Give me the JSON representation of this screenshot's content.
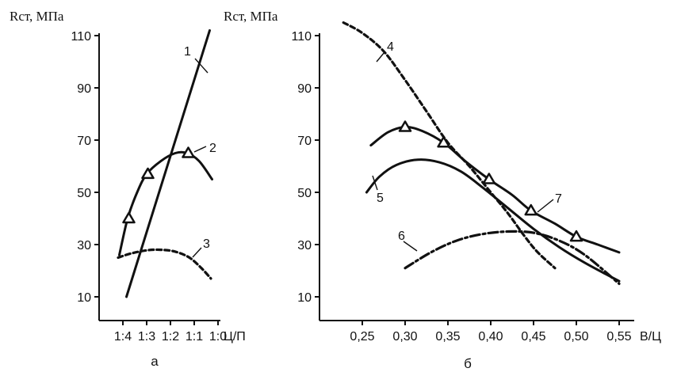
{
  "chart_data": [
    {
      "id": "a",
      "type": "line",
      "ylabel": "Rст, МПа",
      "xlabel": "Ц/П",
      "sublabel": "а",
      "ylim": [
        0,
        115
      ],
      "yticks": [
        "10",
        "30",
        "50",
        "70",
        "90",
        "110"
      ],
      "x_categories": [
        "1:4",
        "1:3",
        "1:2",
        "1:1",
        "1:0"
      ],
      "series": [
        {
          "name": "1",
          "style": "solid",
          "points": [
            [
              1.15,
              10
            ],
            [
              4.65,
              112
            ]
          ],
          "markers": []
        },
        {
          "name": "2",
          "style": "solid",
          "points": [
            [
              0.85,
              26
            ],
            [
              1.2,
              40
            ],
            [
              1.6,
              50
            ],
            [
              2.0,
              57
            ],
            [
              2.6,
              62
            ],
            [
              3.2,
              65
            ],
            [
              3.7,
              65
            ],
            [
              4.2,
              62
            ],
            [
              4.75,
              55
            ]
          ],
          "markers": [
            [
              1.25,
              40
            ],
            [
              2.05,
              57
            ],
            [
              3.75,
              65
            ]
          ]
        },
        {
          "name": "3",
          "style": "dashed",
          "points": [
            [
              0.8,
              25
            ],
            [
              1.3,
              26.5
            ],
            [
              2.0,
              27.8
            ],
            [
              2.6,
              28
            ],
            [
              3.2,
              27.3
            ],
            [
              3.8,
              25
            ],
            [
              4.3,
              21
            ],
            [
              4.7,
              17
            ]
          ],
          "markers": []
        }
      ],
      "annotations": [
        "1",
        "2",
        "3"
      ]
    },
    {
      "id": "b",
      "type": "line",
      "ylabel": "Rст, МПа",
      "xlabel": "В/Ц",
      "sublabel": "б",
      "ylim": [
        0,
        115
      ],
      "xlim": [
        0.2,
        0.56
      ],
      "yticks": [
        "10",
        "30",
        "50",
        "70",
        "90",
        "110"
      ],
      "xticks": [
        [
          "0,25",
          0.25
        ],
        [
          "0,30",
          0.3
        ],
        [
          "0,35",
          0.35
        ],
        [
          "0,40",
          0.4
        ],
        [
          "0,45",
          0.45
        ],
        [
          "0,50",
          0.5
        ],
        [
          "0,55",
          0.55
        ]
      ],
      "series": [
        {
          "name": "4",
          "style": "dashed",
          "points": [
            [
              0.228,
              115
            ],
            [
              0.25,
              111
            ],
            [
              0.275,
              104
            ],
            [
              0.3,
              93
            ],
            [
              0.325,
              81
            ],
            [
              0.35,
              69
            ],
            [
              0.375,
              60
            ],
            [
              0.4,
              50
            ],
            [
              0.42,
              42
            ],
            [
              0.44,
              33
            ],
            [
              0.455,
              27
            ],
            [
              0.475,
              21
            ]
          ],
          "markers": []
        },
        {
          "name": "5",
          "style": "solid",
          "points": [
            [
              0.255,
              50
            ],
            [
              0.27,
              56
            ],
            [
              0.29,
              60.5
            ],
            [
              0.315,
              62.5
            ],
            [
              0.34,
              61.5
            ],
            [
              0.365,
              58
            ],
            [
              0.39,
              52
            ],
            [
              0.42,
              44
            ],
            [
              0.45,
              36
            ],
            [
              0.48,
              29
            ],
            [
              0.51,
              23
            ],
            [
              0.55,
              16
            ]
          ],
          "markers": []
        },
        {
          "name": "6",
          "style": "dashdot",
          "points": [
            [
              0.3,
              21
            ],
            [
              0.33,
              27
            ],
            [
              0.36,
              31.5
            ],
            [
              0.39,
              34
            ],
            [
              0.42,
              35
            ],
            [
              0.45,
              34.5
            ],
            [
              0.48,
              31.5
            ],
            [
              0.51,
              26
            ],
            [
              0.55,
              15
            ]
          ],
          "markers": []
        },
        {
          "name": "7",
          "style": "solid",
          "points": [
            [
              0.26,
              68
            ],
            [
              0.28,
              73
            ],
            [
              0.3,
              75
            ],
            [
              0.32,
              73.5
            ],
            [
              0.345,
              69
            ],
            [
              0.37,
              62
            ],
            [
              0.398,
              55
            ],
            [
              0.425,
              49
            ],
            [
              0.447,
              43
            ],
            [
              0.475,
              38
            ],
            [
              0.5,
              33
            ],
            [
              0.525,
              30
            ],
            [
              0.55,
              27
            ]
          ],
          "markers": [
            [
              0.3,
              75
            ],
            [
              0.345,
              69
            ],
            [
              0.398,
              55
            ],
            [
              0.447,
              43
            ],
            [
              0.5,
              33
            ]
          ]
        }
      ],
      "annotations": [
        "4",
        "5",
        "6",
        "7"
      ]
    }
  ]
}
